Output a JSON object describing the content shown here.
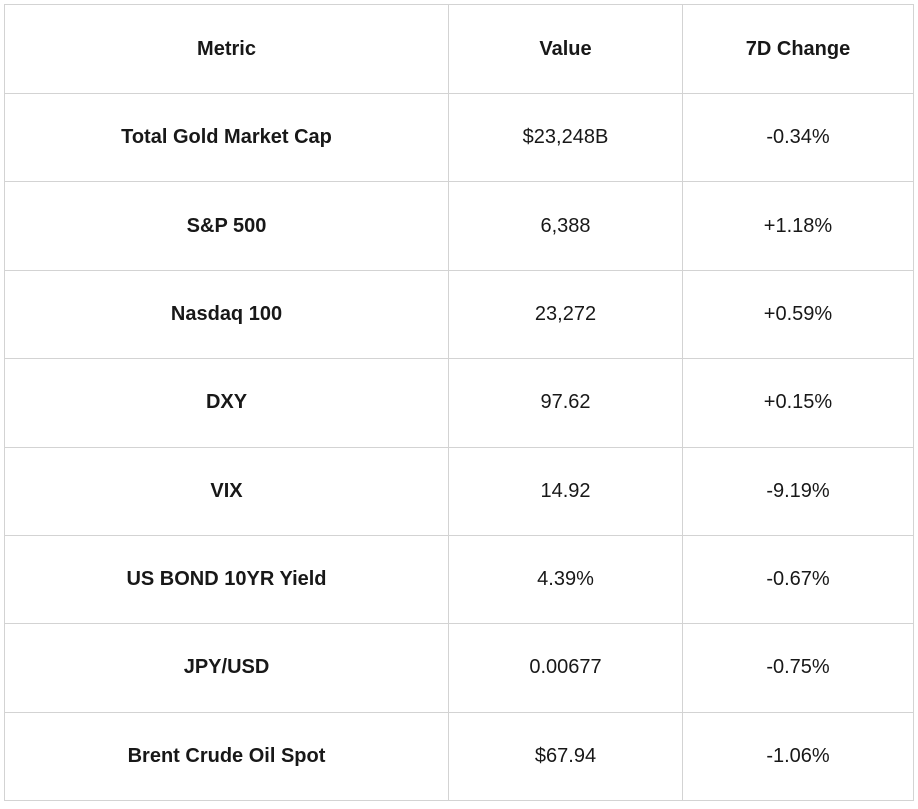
{
  "colors": {
    "background": "#ffffff",
    "border": "#d3d3d3",
    "text": "#181818"
  },
  "table": {
    "columns": [
      "Metric",
      "Value",
      "7D Change"
    ],
    "rows": [
      {
        "metric": "Total Gold Market Cap",
        "value": "$23,248B",
        "change": "-0.34%"
      },
      {
        "metric": "S&P 500",
        "value": "6,388",
        "change": "+1.18%"
      },
      {
        "metric": "Nasdaq 100",
        "value": "23,272",
        "change": "+0.59%"
      },
      {
        "metric": "DXY",
        "value": "97.62",
        "change": "+0.15%"
      },
      {
        "metric": "VIX",
        "value": "14.92",
        "change": "-9.19%"
      },
      {
        "metric": "US BOND 10YR Yield",
        "value": "4.39%",
        "change": "-0.67%"
      },
      {
        "metric": "JPY/USD",
        "value": "0.00677",
        "change": "-0.75%"
      },
      {
        "metric": "Brent Crude Oil Spot",
        "value": "$67.94",
        "change": "-1.06%"
      }
    ]
  },
  "chart_data": {
    "type": "table",
    "title": "",
    "columns": [
      "Metric",
      "Value",
      "7D Change"
    ],
    "categories": [
      "Total Gold Market Cap",
      "S&P 500",
      "Nasdaq 100",
      "DXY",
      "VIX",
      "US BOND 10YR Yield",
      "JPY/USD",
      "Brent Crude Oil Spot"
    ],
    "series": [
      {
        "name": "Value",
        "values": [
          23248,
          6388,
          23272,
          97.62,
          14.92,
          4.39,
          0.00677,
          67.94
        ]
      },
      {
        "name": "7D Change (%)",
        "values": [
          -0.34,
          1.18,
          0.59,
          0.15,
          -9.19,
          -0.67,
          -0.75,
          -1.06
        ]
      }
    ],
    "value_display": [
      "$23,248B",
      "6,388",
      "23,272",
      "97.62",
      "14.92",
      "4.39%",
      "0.00677",
      "$67.94"
    ],
    "change_display": [
      "-0.34%",
      "+1.18%",
      "+0.59%",
      "+0.15%",
      "-9.19%",
      "-0.67%",
      "-0.75%",
      "-1.06%"
    ]
  }
}
